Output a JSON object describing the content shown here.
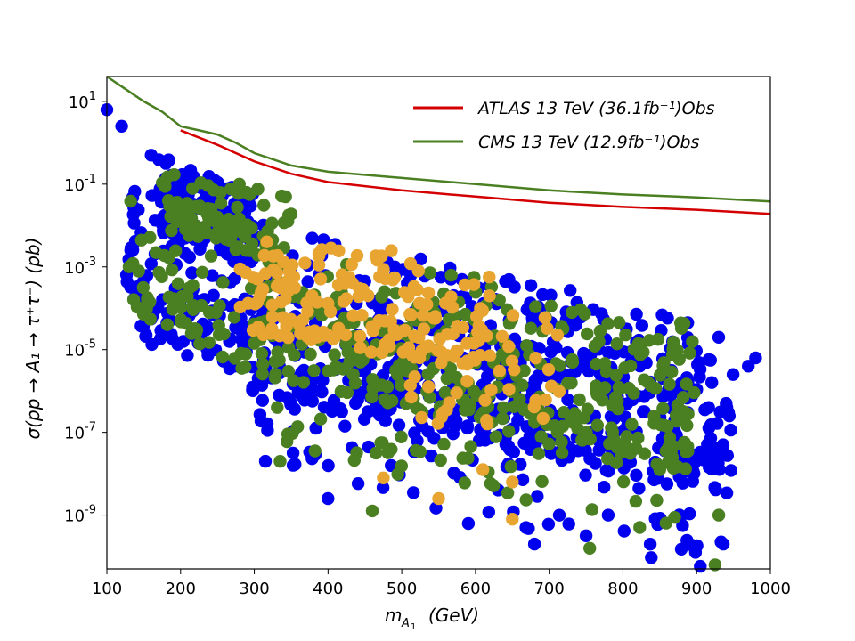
{
  "chart_data": {
    "type": "scatter",
    "title": "",
    "xlabel": "m_{A_1} (GeV)",
    "ylabel": "σ(pp → A_1 → τ⁺τ⁻) (pb)",
    "xlim": [
      100,
      1000
    ],
    "ylim_log10": [
      -10.3,
      1.6
    ],
    "x_ticks": [
      100,
      200,
      300,
      400,
      500,
      600,
      700,
      800,
      900,
      1000
    ],
    "y_ticks_exp": [
      1,
      -1,
      -3,
      -5,
      -7,
      -9
    ],
    "y_tick_base": "10",
    "x_axis_label_text": "m",
    "x_axis_label_sub": "A",
    "x_axis_label_sub2": "1",
    "x_axis_label_unit": "(GeV)",
    "y_axis_label_text": "σ(pp → A₁ → τ⁺τ⁻)  (pb)",
    "legend": [
      {
        "name": "ATLAS 13 TeV (36.1fb⁻¹)Obs",
        "color": "#d40000"
      },
      {
        "name": "CMS 13 TeV (12.9fb⁻¹)Obs",
        "color": "#4a7f22"
      }
    ],
    "lines": [
      {
        "name": "ATLAS 13 TeV Obs",
        "color": "#d40000",
        "points": [
          [
            200,
            0.3
          ],
          [
            250,
            -0.05
          ],
          [
            300,
            -0.45
          ],
          [
            350,
            -0.75
          ],
          [
            400,
            -0.95
          ],
          [
            500,
            -1.15
          ],
          [
            600,
            -1.3
          ],
          [
            700,
            -1.45
          ],
          [
            800,
            -1.55
          ],
          [
            900,
            -1.62
          ],
          [
            1000,
            -1.72
          ]
        ]
      },
      {
        "name": "CMS 13 TeV Obs",
        "color": "#4a7f22",
        "points": [
          [
            100,
            1.6
          ],
          [
            125,
            1.3
          ],
          [
            150,
            1.0
          ],
          [
            175,
            0.75
          ],
          [
            200,
            0.4
          ],
          [
            225,
            0.3
          ],
          [
            250,
            0.2
          ],
          [
            275,
            0.0
          ],
          [
            300,
            -0.25
          ],
          [
            325,
            -0.4
          ],
          [
            350,
            -0.55
          ],
          [
            400,
            -0.7
          ],
          [
            500,
            -0.85
          ],
          [
            600,
            -1.0
          ],
          [
            700,
            -1.15
          ],
          [
            800,
            -1.25
          ],
          [
            900,
            -1.32
          ],
          [
            1000,
            -1.42
          ]
        ]
      }
    ],
    "series": [
      {
        "name": "blue points",
        "color": "#0000ee",
        "envelope": "broad"
      },
      {
        "name": "green points",
        "color": "#4a7f22",
        "envelope": "mid"
      },
      {
        "name": "orange points",
        "color": "#e8a531",
        "envelope": "narrow"
      }
    ],
    "highlight_points": {
      "blue": [
        [
          100,
          0.8
        ],
        [
          120,
          0.4
        ],
        [
          160,
          -0.3
        ],
        [
          180,
          -0.5
        ],
        [
          400,
          -8.6
        ],
        [
          680,
          -9.7
        ],
        [
          750,
          -9.5
        ],
        [
          780,
          -9.0
        ],
        [
          920,
          -7.5
        ],
        [
          980,
          -5.2
        ],
        [
          970,
          -5.4
        ],
        [
          940,
          -6.3
        ]
      ],
      "green": [
        [
          335,
          -7.7
        ],
        [
          460,
          -8.9
        ],
        [
          755,
          -9.8
        ],
        [
          925,
          -10.2
        ],
        [
          930,
          -9.0
        ],
        [
          850,
          -7.9
        ],
        [
          465,
          -7.5
        ]
      ],
      "orange": [
        [
          475,
          -8.1
        ],
        [
          550,
          -8.6
        ],
        [
          650,
          -9.1
        ],
        [
          650,
          -8.2
        ],
        [
          610,
          -7.9
        ]
      ]
    }
  }
}
